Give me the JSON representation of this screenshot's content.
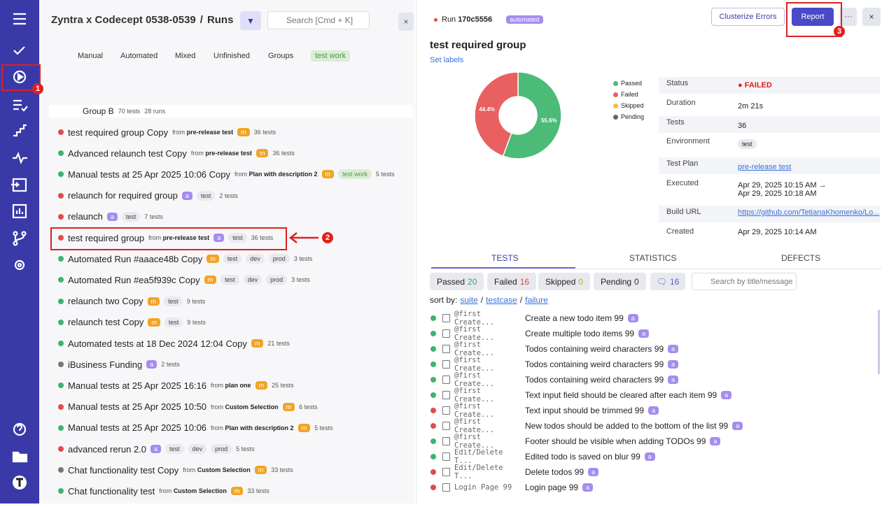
{
  "header": {
    "project": "Zyntra x Codecept 0538-0539",
    "separator": "/",
    "page": "Runs",
    "search": "Search [Cmd + K]"
  },
  "tabs": [
    "Manual",
    "Automated",
    "Mixed",
    "Unfinished",
    "Groups",
    "test work"
  ],
  "group": {
    "name": "Group B",
    "tests": "70 tests",
    "runs": "28 runs"
  },
  "from_word": "from",
  "runs": [
    {
      "status": "failed",
      "title": "test required group Copy",
      "source": "pre-release test",
      "badge": "m",
      "tags": [],
      "count": "36 tests"
    },
    {
      "status": "passed",
      "title": "Advanced relaunch test Copy",
      "source": "pre-release test",
      "badge": "m",
      "tags": [],
      "count": "36 tests"
    },
    {
      "status": "passed",
      "title": "Manual tests at 25 Apr 2025 10:06 Copy",
      "source": "Plan with description 2",
      "badge": "m",
      "label": "test work",
      "tags": [],
      "count": "5 tests"
    },
    {
      "status": "failed",
      "title": "relaunch for required group",
      "badge": "a",
      "tags": [
        "test"
      ],
      "count": "2 tests"
    },
    {
      "status": "failed",
      "title": "relaunch",
      "badge": "a",
      "tags": [
        "test"
      ],
      "count": "7 tests"
    },
    {
      "status": "failed",
      "title": "test required group",
      "source": "pre-release test",
      "badge": "a",
      "tags": [
        "test"
      ],
      "count": "36 tests"
    },
    {
      "status": "passed",
      "title": "Automated Run #aaace48b Copy",
      "badge": "m",
      "tags": [
        "test",
        "dev",
        "prod"
      ],
      "count": "3 tests"
    },
    {
      "status": "passed",
      "title": "Automated Run #ea5f939c Copy",
      "badge": "m",
      "tags": [
        "test",
        "dev",
        "prod"
      ],
      "count": "3 tests"
    },
    {
      "status": "passed",
      "title": "relaunch two Copy",
      "badge": "m",
      "tags": [
        "test"
      ],
      "count": "9 tests"
    },
    {
      "status": "passed",
      "title": "relaunch test Copy",
      "badge": "m",
      "tags": [
        "test"
      ],
      "count": "9 tests"
    },
    {
      "status": "passed",
      "title": "Automated tests at 18 Dec 2024 12:04 Copy",
      "badge": "m",
      "tags": [],
      "count": "21 tests"
    },
    {
      "status": "mixed",
      "title": "iBusiness Funding",
      "badge": "a",
      "tags": [],
      "count": "2 tests"
    },
    {
      "status": "passed",
      "title": "Manual tests at 25 Apr 2025 16:16",
      "source": "plan one",
      "badge": "m",
      "tags": [],
      "count": "25 tests"
    },
    {
      "status": "failed",
      "title": "Manual tests at 25 Apr 2025 10:50",
      "source": "Custom Selection",
      "badge": "m",
      "tags": [],
      "count": "6 tests"
    },
    {
      "status": "passed",
      "title": "Manual tests at 25 Apr 2025 10:06",
      "source": "Plan with description 2",
      "badge": "m",
      "tags": [],
      "count": "5 tests"
    },
    {
      "status": "failed",
      "title": "advanced rerun 2.0",
      "badge": "a",
      "tags": [
        "test",
        "dev",
        "prod"
      ],
      "count": "5 tests"
    },
    {
      "status": "mixed",
      "title": "Chat functionality test Copy",
      "source": "Custom Selection",
      "badge": "m",
      "tags": [],
      "count": "33 tests"
    },
    {
      "status": "passed",
      "title": "Chat functionality test",
      "source": "Custom Selection",
      "badge": "m",
      "tags": [],
      "count": "33 tests"
    }
  ],
  "run": {
    "prefix": "Run",
    "id": "170c5556",
    "mode": "automated",
    "buttons": [
      "Clusterize Errors",
      "Report",
      "···"
    ],
    "title": "test required group",
    "set_labels": "Set labels"
  },
  "summary_chart": {
    "type": "pie",
    "labels": [
      "Passed",
      "Failed",
      "Skipped",
      "Pending"
    ],
    "values": [
      55.6,
      44.4,
      0,
      0
    ],
    "value_labels": [
      "55.6%",
      "44.4%",
      null,
      null
    ],
    "colors": [
      "#4cbb78",
      "#e8605f",
      "#f2c037",
      "#5f6675"
    ]
  },
  "details": [
    {
      "label": "Status",
      "value": "FAILED"
    },
    {
      "label": "Duration",
      "value": "2m 21s"
    },
    {
      "label": "Tests",
      "value": "36"
    },
    {
      "label": "Environment",
      "value": "test"
    },
    {
      "label": "Test Plan",
      "value": "pre-release test"
    },
    {
      "label": "Executed",
      "value": [
        "Apr 29, 2025 10:15 AM →",
        "Apr 29, 2025 10:18 AM"
      ]
    },
    {
      "label": "Build URL",
      "value": "https://github.com/TetianaKhomenko/Lo..."
    },
    {
      "label": "Created",
      "value": "Apr 29, 2025 10:14 AM"
    }
  ],
  "detail_tabs": [
    "TESTS",
    "STATISTICS",
    "DEFECTS"
  ],
  "filters": [
    {
      "label": "Passed",
      "count": 20,
      "color": "#3ca35f"
    },
    {
      "label": "Failed",
      "count": 16,
      "color": "#e04848"
    },
    {
      "label": "Skipped",
      "count": 0,
      "color": "#e0a000"
    },
    {
      "label": "Pending",
      "count": 0,
      "color": "#333"
    }
  ],
  "comments": 16,
  "test_search": "Search by title/message",
  "sort": {
    "label": "sort by:",
    "options": [
      "suite",
      "testcase",
      "failure"
    ],
    "sep": "/"
  },
  "tests": [
    {
      "status": "passed",
      "suite": "@first Create...",
      "title": "Create a new todo item 99"
    },
    {
      "status": "passed",
      "suite": "@first Create...",
      "title": "Create multiple todo items 99"
    },
    {
      "status": "passed",
      "suite": "@first Create...",
      "title": "Todos containing weird characters 99"
    },
    {
      "status": "passed",
      "suite": "@first Create...",
      "title": "Todos containing weird characters 99"
    },
    {
      "status": "passed",
      "suite": "@first Create...",
      "title": "Todos containing weird characters 99"
    },
    {
      "status": "passed",
      "suite": "@first Create...",
      "title": "Text input field should be cleared after each item 99"
    },
    {
      "status": "failed",
      "suite": "@first Create...",
      "title": "Text input should be trimmed 99"
    },
    {
      "status": "failed",
      "suite": "@first Create...",
      "title": "New todos should be added to the bottom of the list 99"
    },
    {
      "status": "passed",
      "suite": "@first Create...",
      "title": "Footer should be visible when adding TODOs 99"
    },
    {
      "status": "passed",
      "suite": "Edit/Delete T...",
      "title": "Edited todo is saved on blur 99"
    },
    {
      "status": "failed",
      "suite": "Edit/Delete T...",
      "title": "Delete todos 99"
    },
    {
      "status": "failed",
      "suite": "Login Page 99",
      "title": "Login page 99"
    }
  ],
  "test_badge": "a",
  "annotations": [
    "1",
    "2",
    "3"
  ]
}
